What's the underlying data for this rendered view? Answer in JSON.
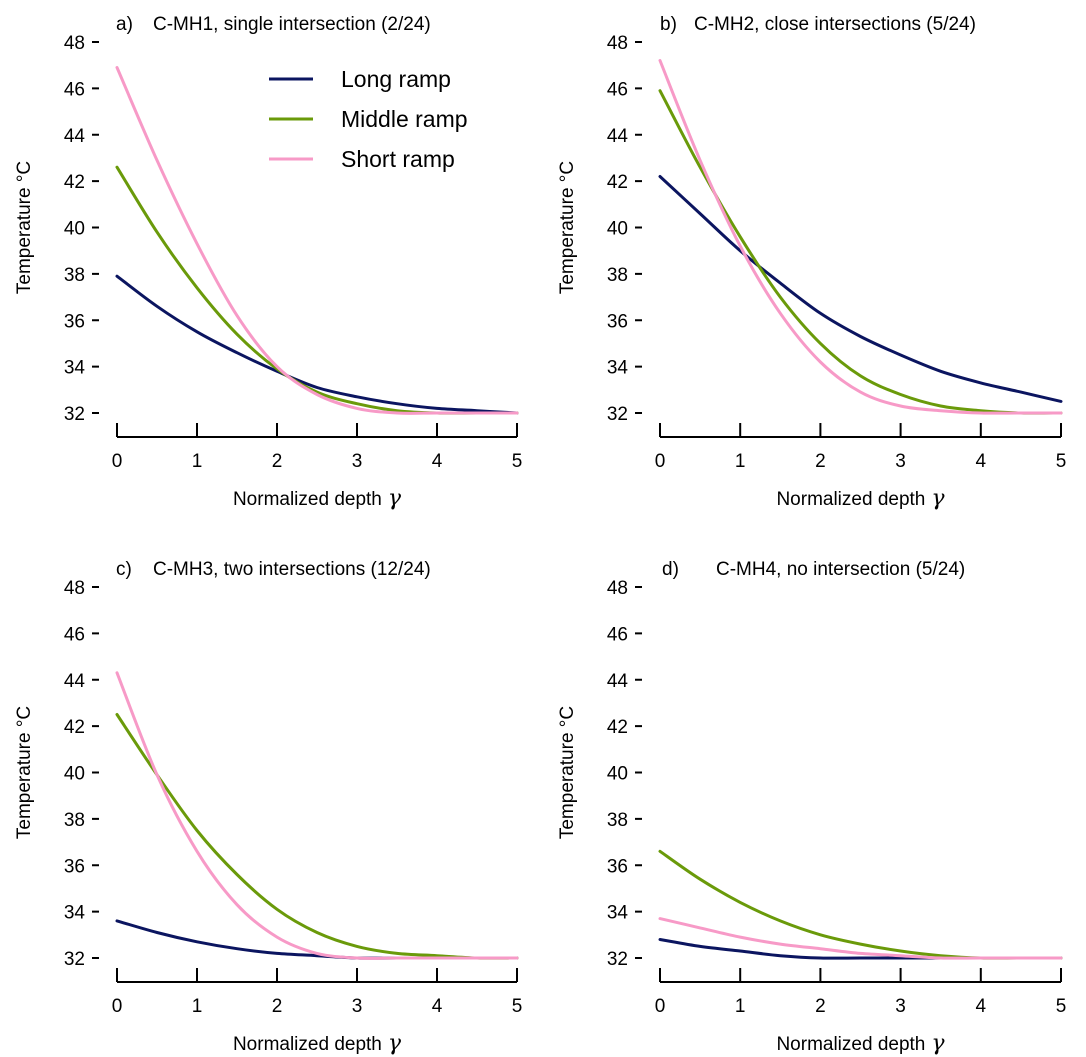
{
  "chart_data": [
    {
      "type": "line",
      "panel_letter": "a)",
      "title": "C-MH1, single intersection (2/24)",
      "xlabel": "Normalized depth",
      "xlabel_symbol": "γ",
      "ylabel": "Temperature °C",
      "xlim": [
        0,
        5
      ],
      "ylim": [
        32,
        48
      ],
      "xticks": [
        "0",
        "1",
        "2",
        "3",
        "4",
        "5"
      ],
      "yticks": [
        "32",
        "34",
        "36",
        "38",
        "40",
        "42",
        "44",
        "46",
        "48"
      ],
      "grid": false,
      "legend": "top-center",
      "x": [
        0,
        0.5,
        1,
        1.5,
        2,
        2.5,
        3,
        3.5,
        4,
        4.5,
        5
      ],
      "series": [
        {
          "name": "Long ramp",
          "color": "#0b1560",
          "values": [
            37.9,
            36.6,
            35.5,
            34.6,
            33.8,
            33.1,
            32.7,
            32.4,
            32.2,
            32.1,
            32.0
          ]
        },
        {
          "name": "Middle ramp",
          "color": "#6a9a0a",
          "values": [
            42.6,
            39.8,
            37.4,
            35.4,
            33.9,
            32.9,
            32.4,
            32.1,
            32.0,
            32.0,
            32.0
          ]
        },
        {
          "name": "Short ramp",
          "color": "#f79ac7",
          "values": [
            46.9,
            42.9,
            39.3,
            36.2,
            34.0,
            32.8,
            32.2,
            32.0,
            32.0,
            32.0,
            32.0
          ]
        }
      ]
    },
    {
      "type": "line",
      "panel_letter": "b)",
      "title": "C-MH2, close intersections (5/24)",
      "xlabel": "Normalized depth",
      "xlabel_symbol": "γ",
      "ylabel": "Temperature °C",
      "xlim": [
        0,
        5
      ],
      "ylim": [
        32,
        48
      ],
      "xticks": [
        "0",
        "1",
        "2",
        "3",
        "4",
        "5"
      ],
      "yticks": [
        "32",
        "34",
        "36",
        "38",
        "40",
        "42",
        "44",
        "46",
        "48"
      ],
      "grid": false,
      "x": [
        0,
        0.5,
        1,
        1.5,
        2,
        2.5,
        3,
        3.5,
        4,
        4.5,
        5
      ],
      "series": [
        {
          "name": "Long ramp",
          "color": "#0b1560",
          "values": [
            42.2,
            40.6,
            39.0,
            37.6,
            36.3,
            35.3,
            34.5,
            33.8,
            33.3,
            32.9,
            32.5
          ]
        },
        {
          "name": "Middle ramp",
          "color": "#6a9a0a",
          "values": [
            45.9,
            42.6,
            39.6,
            37.0,
            35.0,
            33.6,
            32.8,
            32.3,
            32.1,
            32.0,
            32.0
          ]
        },
        {
          "name": "Short ramp",
          "color": "#f79ac7",
          "values": [
            47.2,
            42.9,
            39.2,
            36.3,
            34.2,
            32.9,
            32.3,
            32.1,
            32.0,
            32.0,
            32.0
          ]
        }
      ]
    },
    {
      "type": "line",
      "panel_letter": "c)",
      "title": "C-MH3, two intersections (12/24)",
      "xlabel": "Normalized depth",
      "xlabel_symbol": "γ",
      "ylabel": "Temperature °C",
      "xlim": [
        0,
        5
      ],
      "ylim": [
        32,
        48
      ],
      "xticks": [
        "0",
        "1",
        "2",
        "3",
        "4",
        "5"
      ],
      "yticks": [
        "32",
        "34",
        "36",
        "38",
        "40",
        "42",
        "44",
        "46",
        "48"
      ],
      "grid": false,
      "x": [
        0,
        0.5,
        1,
        1.5,
        2,
        2.5,
        3,
        3.5,
        4,
        4.5,
        5
      ],
      "series": [
        {
          "name": "Long ramp",
          "color": "#0b1560",
          "values": [
            33.6,
            33.1,
            32.7,
            32.4,
            32.2,
            32.1,
            32.0,
            32.0,
            32.0,
            32.0,
            32.0
          ]
        },
        {
          "name": "Middle ramp",
          "color": "#6a9a0a",
          "values": [
            42.5,
            39.9,
            37.5,
            35.6,
            34.1,
            33.1,
            32.5,
            32.2,
            32.1,
            32.0,
            32.0
          ]
        },
        {
          "name": "Short ramp",
          "color": "#f79ac7",
          "values": [
            44.3,
            39.9,
            36.6,
            34.3,
            32.9,
            32.2,
            32.0,
            32.0,
            32.0,
            32.0,
            32.0
          ]
        }
      ]
    },
    {
      "type": "line",
      "panel_letter": "d)",
      "title": "C-MH4, no intersection (5/24)",
      "xlabel": "Normalized depth",
      "xlabel_symbol": "γ",
      "ylabel": "Temperature °C",
      "xlim": [
        0,
        5
      ],
      "ylim": [
        32,
        48
      ],
      "xticks": [
        "0",
        "1",
        "2",
        "3",
        "4",
        "5"
      ],
      "yticks": [
        "32",
        "34",
        "36",
        "38",
        "40",
        "42",
        "44",
        "46",
        "48"
      ],
      "grid": false,
      "x": [
        0,
        0.5,
        1,
        1.5,
        2,
        2.5,
        3,
        3.5,
        4,
        4.5,
        5
      ],
      "series": [
        {
          "name": "Long ramp",
          "color": "#0b1560",
          "values": [
            32.8,
            32.5,
            32.3,
            32.1,
            32.0,
            32.0,
            32.0,
            32.0,
            32.0,
            32.0,
            32.0
          ]
        },
        {
          "name": "Middle ramp",
          "color": "#6a9a0a",
          "values": [
            36.6,
            35.4,
            34.4,
            33.6,
            33.0,
            32.6,
            32.3,
            32.1,
            32.0,
            32.0,
            32.0
          ]
        },
        {
          "name": "Short ramp",
          "color": "#f79ac7",
          "values": [
            33.7,
            33.3,
            32.9,
            32.6,
            32.4,
            32.2,
            32.1,
            32.0,
            32.0,
            32.0,
            32.0
          ]
        }
      ]
    }
  ]
}
